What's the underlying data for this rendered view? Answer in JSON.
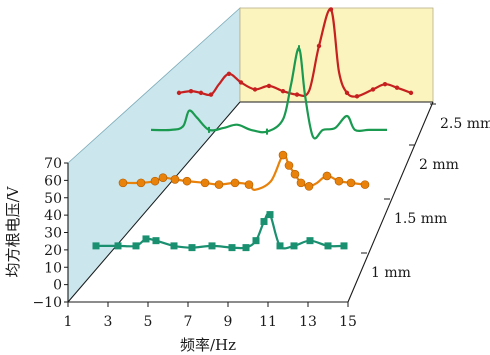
{
  "chart_data": {
    "type": "line",
    "title": "",
    "xlabel": "频率/Hz",
    "ylabel": "均方根电压/V",
    "x_ticks": [
      "1",
      "3",
      "5",
      "7",
      "9",
      "11",
      "13",
      "15"
    ],
    "y_ticks": [
      "−10",
      "0",
      "10",
      "20",
      "30",
      "40",
      "50",
      "60",
      "70"
    ],
    "xlim": [
      1,
      15
    ],
    "ylim": [
      -10,
      70
    ],
    "depth_labels": [
      "1 mm",
      "1.5 mm",
      "2 mm",
      "2.5 mm"
    ],
    "series": [
      {
        "name": "1 mm",
        "color": "#1a9070",
        "marker": "square",
        "x": [
          2.4,
          3.5,
          4.4,
          4.9,
          5.4,
          6.3,
          7.2,
          8.2,
          9.2,
          9.9,
          10.4,
          10.8,
          11.1,
          11.6,
          12.3,
          13.1,
          14.0,
          14.8
        ],
        "y": [
          20,
          20,
          20,
          24,
          23,
          20,
          19,
          20,
          19,
          19,
          23,
          34,
          38,
          20,
          20,
          23,
          20,
          20
        ]
      },
      {
        "name": "1.5 mm",
        "color": "#e8820a",
        "marker": "circle",
        "x": [
          2.4,
          3.3,
          4.0,
          4.4,
          5.0,
          5.6,
          6.5,
          7.2,
          8.0,
          8.7,
          9.0,
          9.8,
          10.4,
          10.7,
          11.0,
          11.3,
          11.7,
          12.1,
          12.6,
          13.2,
          13.8,
          14.5
        ],
        "y": [
          20,
          20,
          21,
          23,
          22,
          21,
          20,
          19,
          20,
          19,
          16,
          21,
          36,
          30,
          25,
          20,
          18,
          20,
          24,
          21,
          20,
          19
        ],
        "markers_x": [
          2.4,
          3.3,
          4.0,
          4.4,
          5.0,
          5.6,
          6.5,
          7.2,
          8.0,
          8.7,
          10.4,
          10.7,
          11.0,
          11.3,
          11.7,
          12.6,
          13.2,
          13.8,
          14.5
        ]
      },
      {
        "name": "2 mm",
        "color": "#1a9a50",
        "marker": "line",
        "x": [
          2.4,
          3.4,
          4.0,
          4.3,
          4.7,
          5.3,
          6.0,
          6.7,
          7.4,
          8.2,
          9.0,
          9.4,
          9.8,
          10.1,
          10.5,
          11.0,
          11.6,
          12.2,
          12.6,
          13.3,
          14.2
        ],
        "y": [
          20,
          20,
          22,
          31,
          27,
          20,
          21,
          23,
          20,
          19,
          26,
          46,
          67,
          40,
          16,
          20,
          21,
          28,
          20,
          20,
          20
        ],
        "markers_x": [
          5.3,
          8.2,
          9.8
        ]
      },
      {
        "name": "2.5 mm",
        "color": "#c62020",
        "marker": "dot",
        "x": [
          2.4,
          3.0,
          3.5,
          4.0,
          4.4,
          4.9,
          5.5,
          6.2,
          6.9,
          7.6,
          8.3,
          8.9,
          9.4,
          10.0,
          10.4,
          10.8,
          11.3,
          12.1,
          12.7,
          13.3,
          14.0
        ],
        "y": [
          20,
          21,
          20,
          19,
          25,
          31,
          26,
          22,
          24,
          21,
          19,
          21,
          47,
          68,
          32,
          20,
          18,
          22,
          25,
          23,
          20
        ],
        "markers_x": [
          2.4,
          3.0,
          3.5,
          4.0,
          4.9,
          5.5,
          6.2,
          6.9,
          7.6,
          8.3,
          9.4,
          10.0,
          10.8,
          11.3,
          12.1,
          12.7,
          13.3,
          14.0
        ]
      }
    ],
    "colors": {
      "side_wall": "#cbe6ec",
      "back_wall": "#fbf4bf",
      "axis": "#1a1a1a"
    },
    "grid": false
  }
}
